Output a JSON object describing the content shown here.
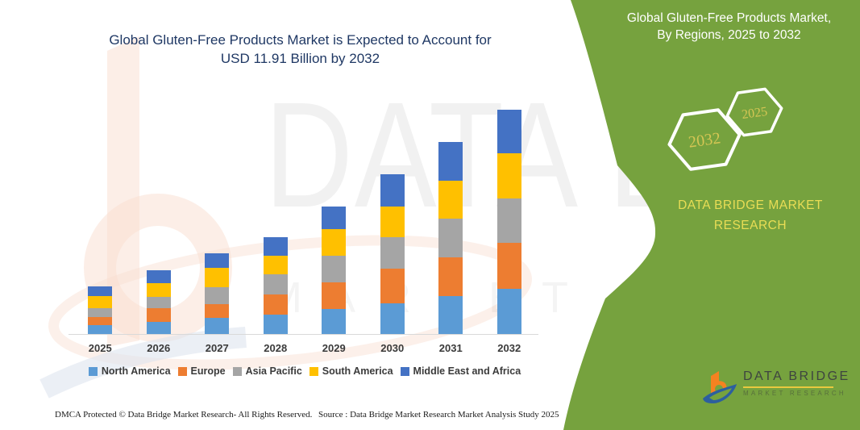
{
  "chart_title": {
    "line1": "Global Gluten-Free Products Market is Expected to Account for",
    "line2": "USD 11.91 Billion by 2032",
    "color": "#1f3864"
  },
  "chart_data": {
    "type": "bar",
    "stacked": true,
    "unit": "USD Billion (estimated from bar heights; 2032 total = 11.91)",
    "categories": [
      "2025",
      "2026",
      "2027",
      "2028",
      "2029",
      "2030",
      "2031",
      "2032"
    ],
    "series": [
      {
        "name": "North America",
        "color": "#5b9bd5",
        "values": [
          0.47,
          0.64,
          0.86,
          1.03,
          1.33,
          1.63,
          2.01,
          2.4
        ]
      },
      {
        "name": "Europe",
        "color": "#ed7d31",
        "values": [
          0.43,
          0.73,
          0.73,
          1.07,
          1.41,
          1.84,
          2.06,
          2.44
        ]
      },
      {
        "name": "Asia Pacific",
        "color": "#a5a5a5",
        "values": [
          0.47,
          0.6,
          0.9,
          1.07,
          1.41,
          1.67,
          2.06,
          2.36
        ]
      },
      {
        "name": "South America",
        "color": "#ffc000",
        "values": [
          0.64,
          0.73,
          1.03,
          0.99,
          1.41,
          1.63,
          2.01,
          2.4
        ]
      },
      {
        "name": "Middle East and Africa",
        "color": "#4472c4",
        "values": [
          0.51,
          0.69,
          0.77,
          0.99,
          1.2,
          1.71,
          2.06,
          2.31
        ]
      }
    ],
    "totals_estimated": [
      2.52,
      3.39,
      4.29,
      5.15,
      6.76,
      8.48,
      10.2,
      11.91
    ],
    "ylim": [
      0,
      12
    ],
    "grid": false,
    "y_axis_shown": false,
    "legend_position": "bottom",
    "axis_line_color": "#d9d9d9"
  },
  "panel": {
    "bg_color": "#76a23e",
    "title_line1": "Global Gluten-Free Products Market,",
    "title_line2": "By Regions, 2025 to 2032",
    "hexagons": [
      {
        "label": "2032"
      },
      {
        "label": "2025"
      }
    ],
    "hex_stroke_color": "#ffffff",
    "hex_text_color": "#d6c654",
    "brand_line1": "DATA BRIDGE MARKET",
    "brand_line2": "RESEARCH",
    "brand_color": "#e9dd55",
    "logo": {
      "name_text": "DATA BRIDGE",
      "sub_text": "MARKET RESEARCH"
    }
  },
  "watermark": {
    "line1": "DATA BRIDGE",
    "line2": "MARKET RESEARCH"
  },
  "footer": {
    "left": "DMCA Protected © Data Bridge Market Research- All Rights Reserved.",
    "right": "Source : Data Bridge Market Research Market Analysis Study 2025"
  }
}
